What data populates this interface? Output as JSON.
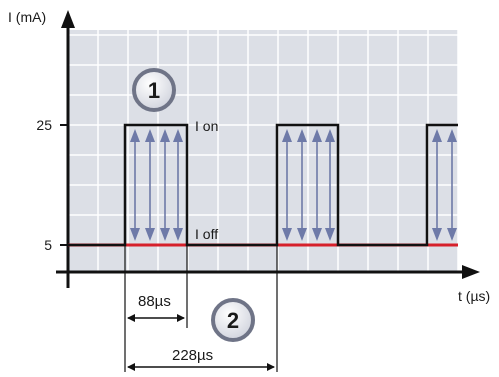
{
  "axes": {
    "y_label": "I (mA)",
    "x_label": "t (µs)",
    "y_ticks": [
      "25",
      "5"
    ]
  },
  "annotations": {
    "i_on": "I on",
    "i_off": "I off",
    "pulse_width": "88µs",
    "period": "228µs"
  },
  "badges": [
    "1",
    "2"
  ],
  "colors": {
    "background": "#dcdfe6",
    "grid": "#ffffff",
    "pulse": "#111111",
    "baseline": "#d6202b",
    "arrows": "#6e7aa8",
    "badge_fill": "#e9eaf0",
    "badge_ring": "#6f7487"
  }
}
